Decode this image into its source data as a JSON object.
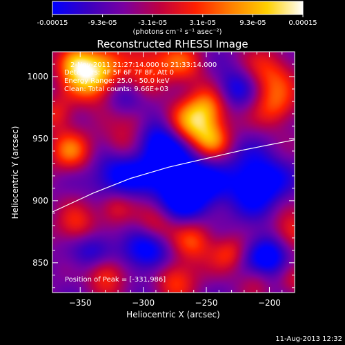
{
  "chart_data": {
    "type": "heatmap",
    "title": "Reconstructed RHESSI Image",
    "xlabel": "Heliocentric X (arcsec)",
    "ylabel": "Heliocentric Y (arcsec)",
    "xlim": [
      -372,
      -180
    ],
    "ylim": [
      826,
      1020
    ],
    "xticks": [
      -350,
      -300,
      -250,
      -200
    ],
    "yticks": [
      850,
      900,
      950,
      1000
    ],
    "colorbar": {
      "range": [
        -0.00015,
        0.00015
      ],
      "tick_labels": [
        "-0.00015",
        "-9.3e-05",
        "-3.1e-05",
        "3.1e-05",
        "9.3e-05",
        "0.00015"
      ],
      "unit_text": "(photons cm⁻² s⁻¹ asec⁻²)",
      "colors": [
        "#0000ff",
        "#3a00c0",
        "#7a00a0",
        "#c00040",
        "#ff2000",
        "#ff8000",
        "#ffd000",
        "#ffffff"
      ]
    },
    "annotations": {
      "time": "2-Nov-2011 21:27:14.000 to 21:33:14.000",
      "detectors": "Detectors: 4F 5F 6F 7F 8F, Att 0",
      "energy": "Energy Range: 25.0 - 50.0 keV",
      "clean": "Clean: Total counts: 9.66E+03",
      "peak": "Position of Peak = [-331,986]"
    },
    "limb_curve": {
      "x": [
        -372,
        -340,
        -310,
        -280,
        -250,
        -220,
        -200,
        -180
      ],
      "y": [
        891,
        906,
        918,
        927,
        934,
        941,
        945,
        949
      ]
    },
    "sources": [
      {
        "x": -340,
        "y": 1000,
        "amp": 1.0,
        "sigma": 14
      },
      {
        "x": -355,
        "y": 1012,
        "amp": 0.7,
        "sigma": 10
      },
      {
        "x": -300,
        "y": 1008,
        "amp": 0.55,
        "sigma": 16
      },
      {
        "x": -268,
        "y": 1010,
        "amp": 0.45,
        "sigma": 12
      },
      {
        "x": -262,
        "y": 960,
        "amp": 0.85,
        "sigma": 14
      },
      {
        "x": -248,
        "y": 975,
        "amp": 0.6,
        "sigma": 12
      },
      {
        "x": -245,
        "y": 948,
        "amp": 0.5,
        "sigma": 10
      },
      {
        "x": -200,
        "y": 1002,
        "amp": 0.5,
        "sigma": 14
      },
      {
        "x": -195,
        "y": 975,
        "amp": 0.5,
        "sigma": 12
      },
      {
        "x": -358,
        "y": 940,
        "amp": 0.6,
        "sigma": 12
      },
      {
        "x": -368,
        "y": 970,
        "amp": 0.4,
        "sigma": 10
      },
      {
        "x": -318,
        "y": 945,
        "amp": 0.4,
        "sigma": 11
      },
      {
        "x": -352,
        "y": 878,
        "amp": 0.55,
        "sigma": 12
      },
      {
        "x": -322,
        "y": 895,
        "amp": 0.5,
        "sigma": 10
      },
      {
        "x": -290,
        "y": 880,
        "amp": 0.45,
        "sigma": 11
      },
      {
        "x": -260,
        "y": 868,
        "amp": 0.55,
        "sigma": 12
      },
      {
        "x": -232,
        "y": 858,
        "amp": 0.45,
        "sigma": 10
      },
      {
        "x": -330,
        "y": 842,
        "amp": 0.65,
        "sigma": 11
      },
      {
        "x": -275,
        "y": 838,
        "amp": 0.55,
        "sigma": 12
      },
      {
        "x": -183,
        "y": 872,
        "amp": 0.6,
        "sigma": 12
      },
      {
        "x": -210,
        "y": 838,
        "amp": 0.35,
        "sigma": 10
      },
      {
        "x": -180,
        "y": 835,
        "amp": 0.35,
        "sigma": 10
      },
      {
        "x": -305,
        "y": 965,
        "amp": 0.35,
        "sigma": 10
      },
      {
        "x": -285,
        "y": 945,
        "amp": -0.7,
        "sigma": 16
      },
      {
        "x": -320,
        "y": 920,
        "amp": -0.6,
        "sigma": 14
      },
      {
        "x": -265,
        "y": 910,
        "amp": -0.8,
        "sigma": 18
      },
      {
        "x": -210,
        "y": 915,
        "amp": -0.7,
        "sigma": 16
      },
      {
        "x": -340,
        "y": 860,
        "amp": -0.5,
        "sigma": 14
      },
      {
        "x": -295,
        "y": 858,
        "amp": -0.55,
        "sigma": 14
      },
      {
        "x": -200,
        "y": 855,
        "amp": -0.7,
        "sigma": 14
      },
      {
        "x": -228,
        "y": 990,
        "amp": -0.45,
        "sigma": 12
      },
      {
        "x": -312,
        "y": 985,
        "amp": -0.4,
        "sigma": 12
      }
    ]
  },
  "footer": {
    "timestamp": "11-Aug-2013 12:32"
  }
}
